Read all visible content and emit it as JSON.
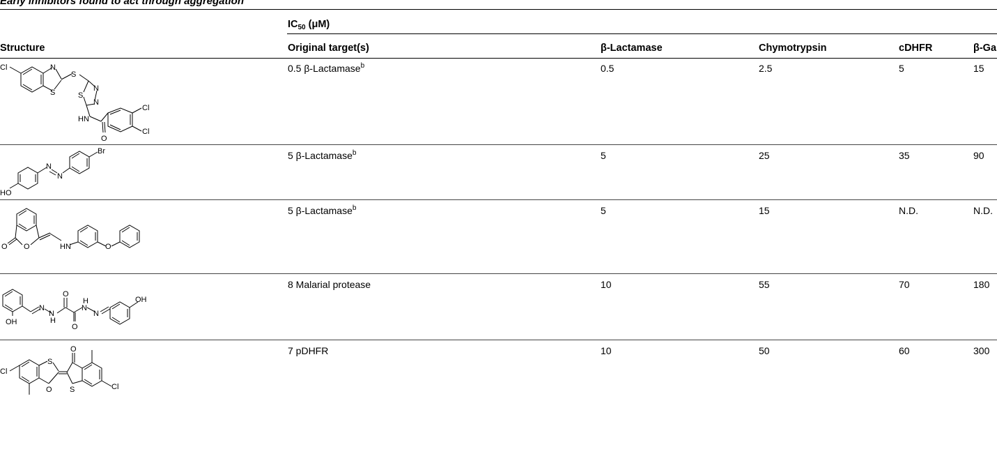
{
  "caption": "Early inhibitors found to act through aggregation",
  "header": {
    "group_label": "IC",
    "group_sub": "50",
    "group_unit": " (μM)",
    "columns": {
      "structure": "Structure",
      "original": "Original target(s)",
      "lactamase": "β-Lactamase",
      "chymotrypsin": "Chymotrypsin",
      "cdhfr": "cDHFR",
      "gal": "β-Gal"
    }
  },
  "rows": [
    {
      "original": "0.5 β-Lactamase",
      "sup": "b",
      "lactamase": "0.5",
      "chymotrypsin": "2.5",
      "cdhfr": "5",
      "gal": "15"
    },
    {
      "original": "5 β-Lactamase",
      "sup": "b",
      "lactamase": "5",
      "chymotrypsin": "25",
      "cdhfr": "35",
      "gal": "90"
    },
    {
      "original": "5 β-Lactamase",
      "sup": "b",
      "lactamase": "5",
      "chymotrypsin": "15",
      "cdhfr": "N.D.",
      "gal": "N.D."
    },
    {
      "original": "8 Malarial protease",
      "sup": "",
      "lactamase": "10",
      "chymotrypsin": "55",
      "cdhfr": "70",
      "gal": "180"
    },
    {
      "original": "7 pDHFR",
      "sup": "",
      "lactamase": "10",
      "chymotrypsin": "50",
      "cdhfr": "60",
      "gal": "300"
    }
  ],
  "atoms": {
    "cl": "Cl",
    "n": "N",
    "s": "S",
    "hn": "HN",
    "o": "O",
    "br": "Br",
    "ho": "HO",
    "oh": "OH",
    "h": "H"
  }
}
